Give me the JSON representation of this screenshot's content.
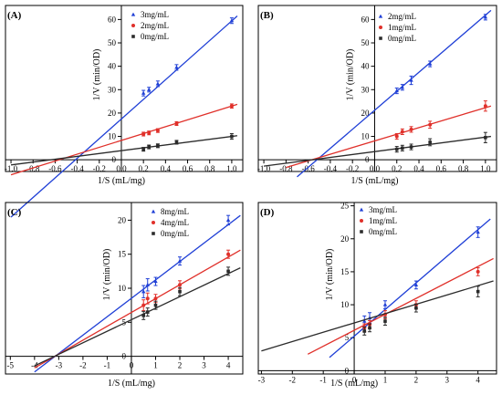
{
  "chart_data": [
    {
      "type": "scatter",
      "panel_label": "(A)",
      "xlabel": "1/S (mL/mg)",
      "ylabel": "1/V (min/OD)",
      "xlim": [
        -1.05,
        1.1
      ],
      "ylim": [
        -5,
        66
      ],
      "xticks": [
        -1.0,
        -0.8,
        -0.6,
        -0.4,
        -0.2,
        0.0,
        0.2,
        0.4,
        0.6,
        0.8,
        1.0
      ],
      "xtick_labels": [
        "-1.0",
        "-0.8",
        "-0.6",
        "-0.4",
        "-0.2",
        "0.0",
        "0.2",
        "0.4",
        "0.6",
        "0.8",
        "1.0"
      ],
      "yticks": [
        0,
        10,
        20,
        30,
        40,
        50,
        60
      ],
      "ytick_labels": [
        "0",
        "10",
        "20",
        "30",
        "40",
        "50",
        "60"
      ],
      "series": [
        {
          "name": "3mg/mL",
          "color": "#1f3fd6",
          "marker": "triangle",
          "x": [
            0.2,
            0.25,
            0.33,
            0.5,
            1.0
          ],
          "y": [
            28.5,
            30,
            32.5,
            39.5,
            59.5
          ],
          "err": [
            1.2,
            1,
            1.2,
            1.2,
            1.2
          ],
          "line_x": [
            -1.0,
            1.05
          ],
          "line_y": [
            -24.5,
            61.5
          ]
        },
        {
          "name": "2mg/mL",
          "color": "#e0302a",
          "marker": "circle",
          "x": [
            0.2,
            0.25,
            0.33,
            0.5,
            1.0
          ],
          "y": [
            11,
            11.5,
            12.5,
            15.5,
            23
          ],
          "err": [
            0.8,
            0.8,
            0.8,
            0.8,
            0.9
          ],
          "line_x": [
            -1.0,
            1.05
          ],
          "line_y": [
            -6.4,
            23.7
          ]
        },
        {
          "name": "0mg/mL",
          "color": "#2b2b2b",
          "marker": "square",
          "x": [
            0.2,
            0.25,
            0.33,
            0.5,
            1.0
          ],
          "y": [
            4.5,
            5.5,
            6,
            7.5,
            10
          ],
          "err": [
            0.8,
            0.8,
            0.8,
            0.8,
            1.2
          ],
          "line_x": [
            -1.0,
            1.05
          ],
          "line_y": [
            -2.2,
            10.3
          ]
        }
      ]
    },
    {
      "type": "scatter",
      "panel_label": "(B)",
      "xlabel": "1/S (mL/mg)",
      "ylabel": "1/V (min/OD)",
      "xlim": [
        -1.05,
        1.1
      ],
      "ylim": [
        -5,
        66
      ],
      "xticks": [
        -1.0,
        -0.8,
        -0.6,
        -0.4,
        -0.2,
        0.0,
        0.2,
        0.4,
        0.6,
        0.8,
        1.0
      ],
      "xtick_labels": [
        "-1.0",
        "-0.8",
        "-0.6",
        "-0.4",
        "-0.2",
        "0.0",
        "0.2",
        "0.4",
        "0.6",
        "0.8",
        "1.0"
      ],
      "yticks": [
        0,
        10,
        20,
        30,
        40,
        50,
        60
      ],
      "ytick_labels": [
        "0",
        "10",
        "20",
        "30",
        "40",
        "50",
        "60"
      ],
      "series": [
        {
          "name": "2mg/mL",
          "color": "#1f3fd6",
          "marker": "triangle",
          "x": [
            0.2,
            0.25,
            0.33,
            0.5,
            1.0
          ],
          "y": [
            29.5,
            31,
            34,
            41,
            61
          ],
          "err": [
            1.2,
            1.2,
            1.8,
            1.2,
            1.2
          ],
          "line_x": [
            -0.7,
            1.05
          ],
          "line_y": [
            -7.3,
            63.9
          ]
        },
        {
          "name": "1mg/mL",
          "color": "#e0302a",
          "marker": "circle",
          "x": [
            0.2,
            0.25,
            0.33,
            0.5,
            1.0
          ],
          "y": [
            10,
            12,
            13,
            15,
            23
          ],
          "err": [
            1.2,
            1.2,
            1.2,
            1.5,
            2.2
          ],
          "line_x": [
            -0.8,
            1.05
          ],
          "line_y": [
            -3.3,
            23.0
          ]
        },
        {
          "name": "0mg/mL",
          "color": "#2b2b2b",
          "marker": "square",
          "x": [
            0.2,
            0.25,
            0.33,
            0.5,
            1.0
          ],
          "y": [
            4.5,
            5,
            5.5,
            7.5,
            9.5
          ],
          "err": [
            1.2,
            1.2,
            1.2,
            1.5,
            2.2
          ],
          "line_x": [
            -1.0,
            1.05
          ],
          "line_y": [
            -2.7,
            10.0
          ]
        }
      ]
    },
    {
      "type": "scatter",
      "panel_label": "(C)",
      "xlabel": "1/S (mL/mg)",
      "ylabel": "1/V (min/OD)",
      "xlim": [
        -5.2,
        4.6
      ],
      "ylim": [
        -2.6,
        22.6
      ],
      "xticks": [
        -5,
        -4,
        -3,
        -2,
        -1,
        0,
        1,
        2,
        3,
        4
      ],
      "xtick_labels": [
        "-5",
        "-4",
        "-3",
        "-2",
        "-1",
        "0",
        "1",
        "2",
        "3",
        "4"
      ],
      "yticks": [
        0,
        5,
        10,
        15,
        20
      ],
      "ytick_labels": [
        "0",
        "5",
        "10",
        "15",
        "20"
      ],
      "series": [
        {
          "name": "8mg/mL",
          "color": "#1f3fd6",
          "marker": "triangle",
          "x": [
            0.5,
            0.67,
            1.0,
            2.0,
            4.0
          ],
          "y": [
            9.5,
            10.5,
            11,
            14,
            20
          ],
          "err": [
            0.9,
            0.9,
            0.6,
            0.6,
            0.7
          ],
          "line_x": [
            -4.0,
            4.5
          ],
          "line_y": [
            -2.3,
            20.7
          ]
        },
        {
          "name": "4mg/mL",
          "color": "#e0302a",
          "marker": "circle",
          "x": [
            0.5,
            0.67,
            1.0,
            2.0,
            4.0
          ],
          "y": [
            7.5,
            8.5,
            8.5,
            10.5,
            15
          ],
          "err": [
            0.8,
            0.8,
            0.6,
            0.6,
            0.6
          ],
          "line_x": [
            -4.0,
            4.5
          ],
          "line_y": [
            -1.7,
            15.6
          ]
        },
        {
          "name": "0mg/mL",
          "color": "#2b2b2b",
          "marker": "square",
          "x": [
            0.5,
            0.67,
            1.0,
            2.0,
            4.0
          ],
          "y": [
            6,
            6.5,
            7.5,
            9.5,
            12.5
          ],
          "err": [
            0.6,
            0.6,
            0.6,
            0.6,
            0.6
          ],
          "line_x": [
            -4.0,
            4.5
          ],
          "line_y": [
            -1.4,
            13.0
          ]
        }
      ]
    },
    {
      "type": "scatter",
      "panel_label": "(D)",
      "xlabel": "1/S (mL/mg)",
      "ylabel": "1/V (min/OD)",
      "xlim": [
        -3.1,
        4.6
      ],
      "ylim": [
        -0.5,
        25.5
      ],
      "xticks": [
        -3,
        -2,
        -1,
        0,
        1,
        2,
        3,
        4
      ],
      "xtick_labels": [
        "-3",
        "-2",
        "-1",
        "0",
        "1",
        "2",
        "3",
        "4"
      ],
      "yticks": [
        0,
        5,
        10,
        15,
        20,
        25
      ],
      "ytick_labels": [
        "0",
        "5",
        "10",
        "15",
        "20",
        "25"
      ],
      "series": [
        {
          "name": "3mg/mL",
          "color": "#1f3fd6",
          "marker": "triangle",
          "x": [
            0.33,
            0.5,
            1.0,
            2.0,
            4.0
          ],
          "y": [
            7.5,
            8,
            10,
            13,
            21
          ],
          "err": [
            0.8,
            0.8,
            0.6,
            0.6,
            0.8
          ],
          "line_x": [
            -0.8,
            4.4
          ],
          "line_y": [
            2.0,
            23.0
          ]
        },
        {
          "name": "1mg/mL",
          "color": "#e0302a",
          "marker": "circle",
          "x": [
            0.33,
            0.5,
            1.0,
            2.0,
            4.0
          ],
          "y": [
            6.5,
            7,
            8.5,
            10,
            15
          ],
          "err": [
            0.6,
            0.6,
            0.6,
            0.6,
            0.6
          ],
          "line_x": [
            -1.5,
            4.5
          ],
          "line_y": [
            2.5,
            17.0
          ]
        },
        {
          "name": "0mg/mL",
          "color": "#2b2b2b",
          "marker": "square",
          "x": [
            0.33,
            0.5,
            1.0,
            2.0,
            4.0
          ],
          "y": [
            6,
            6.5,
            7.5,
            9.5,
            12
          ],
          "err": [
            0.6,
            0.6,
            0.6,
            0.6,
            0.8
          ],
          "line_x": [
            -3.0,
            4.5
          ],
          "line_y": [
            3.0,
            13.6
          ]
        }
      ]
    }
  ]
}
